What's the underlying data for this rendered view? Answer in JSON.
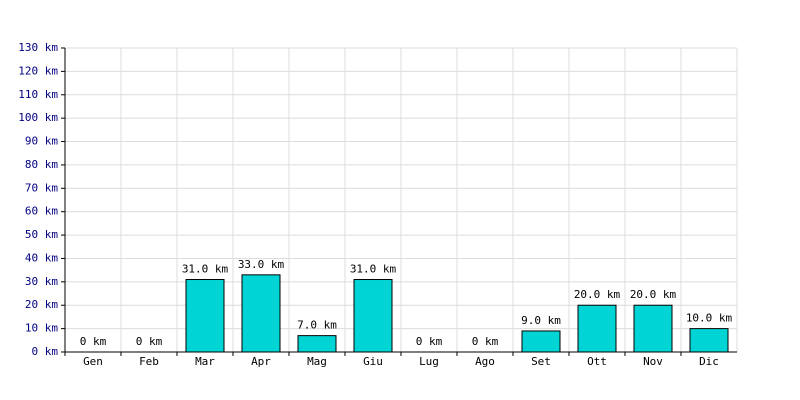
{
  "chart_data": {
    "type": "bar",
    "categories": [
      "Gen",
      "Feb",
      "Mar",
      "Apr",
      "Mag",
      "Giu",
      "Lug",
      "Ago",
      "Set",
      "Ott",
      "Nov",
      "Dic"
    ],
    "values": [
      0,
      0,
      31,
      33,
      7,
      31,
      0,
      0,
      9,
      20,
      20,
      10
    ],
    "value_labels": [
      "0 km",
      "0 km",
      "31.0 km",
      "33.0 km",
      "7.0 km",
      "31.0 km",
      "0 km",
      "0 km",
      "9.0 km",
      "20.0 km",
      "20.0 km",
      "10.0 km"
    ],
    "color": "#00d4d4",
    "ylim": [
      0,
      130
    ],
    "yticks": [
      {
        "value": 0,
        "label": "0 km"
      },
      {
        "value": 10,
        "label": "10 km"
      },
      {
        "value": 20,
        "label": "20 km"
      },
      {
        "value": 30,
        "label": "30 km"
      },
      {
        "value": 40,
        "label": "40 km"
      },
      {
        "value": 50,
        "label": "50 km"
      },
      {
        "value": 60,
        "label": "60 km"
      },
      {
        "value": 70,
        "label": "70 km"
      },
      {
        "value": 80,
        "label": "80 km"
      },
      {
        "value": 90,
        "label": "90 km"
      },
      {
        "value": 100,
        "label": "100 km"
      },
      {
        "value": 110,
        "label": "110 km"
      },
      {
        "value": 120,
        "label": "120 km"
      },
      {
        "value": 130,
        "label": "130 km"
      }
    ],
    "grid": true
  }
}
